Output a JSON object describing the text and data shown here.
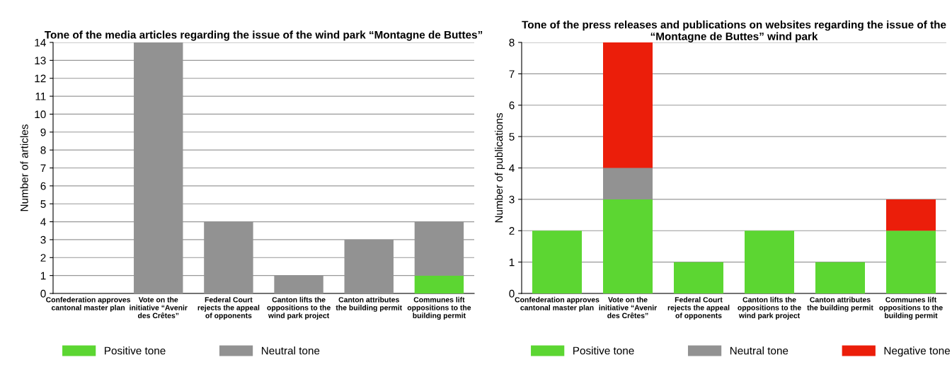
{
  "chart_data": [
    {
      "type": "bar",
      "stacked": true,
      "title": "Tone of the media articles regarding the issue of the wind park “Montagne de Buttes”",
      "ylabel": "Number of articles",
      "categories": [
        "Confederation approves\ncantonal master plan",
        "Vote on the\ninitiative “Avenir\ndes Crêtes”",
        "Federal Court\nrejects the appeal\nof opponents",
        "Canton lifts the\noppositions to the\nwind park project",
        "Canton attributes\nthe building permit",
        "Communes lift\noppositions to the\nbuilding permit"
      ],
      "series": [
        {
          "name": "Positive tone",
          "color": "#5cd632",
          "values": [
            0,
            0,
            0,
            0,
            0,
            1
          ]
        },
        {
          "name": "Neutral tone",
          "color": "#929292",
          "values": [
            0,
            14,
            4,
            1,
            3,
            3
          ]
        }
      ],
      "ylim": [
        0,
        14
      ],
      "yticks": [
        0,
        1,
        2,
        3,
        4,
        5,
        6,
        7,
        8,
        9,
        10,
        11,
        12,
        13,
        14
      ],
      "grid": "y",
      "legend": "bottom"
    },
    {
      "type": "bar",
      "stacked": true,
      "title": "Tone of the press releases and publications on websites regarding the issue of the “Montagne de Buttes” wind park",
      "ylabel": "Number of publications",
      "categories": [
        "Confederation approves\ncantonal master plan",
        "Vote on the\ninitiative “Avenir\ndes Crêtes”",
        "Federal Court\nrejects the appeal\nof opponents",
        "Canton lifts the\noppositions to the\nwind park project",
        "Canton attributes\nthe building permit",
        "Communes lift\noppositions to the\nbuilding permit"
      ],
      "series": [
        {
          "name": "Positive tone",
          "color": "#5cd632",
          "values": [
            2,
            3,
            1,
            2,
            1,
            2
          ]
        },
        {
          "name": "Neutral tone",
          "color": "#929292",
          "values": [
            0,
            1,
            0,
            0,
            0,
            0
          ]
        },
        {
          "name": "Negative tone",
          "color": "#eb1e0a",
          "values": [
            0,
            4,
            0,
            0,
            0,
            1
          ]
        }
      ],
      "ylim": [
        0,
        8
      ],
      "yticks": [
        0,
        1,
        2,
        3,
        4,
        5,
        6,
        7,
        8
      ],
      "grid": "y",
      "legend": "bottom"
    }
  ]
}
